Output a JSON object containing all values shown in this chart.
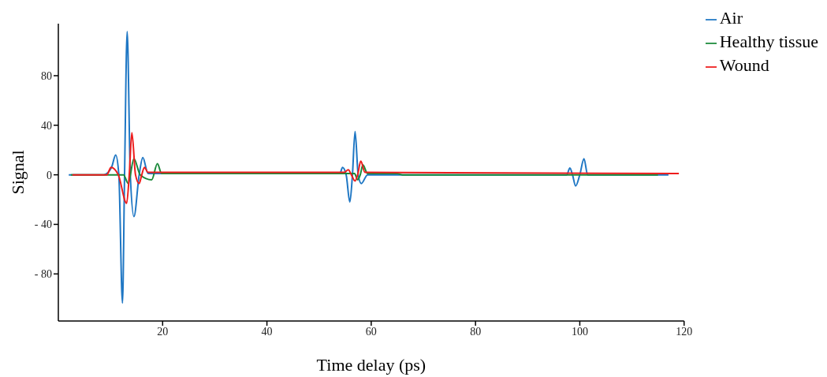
{
  "chart_data": {
    "type": "line",
    "xlabel": "Time delay (ps)",
    "ylabel": "Signal",
    "xlim": [
      0,
      120
    ],
    "ylim": [
      -118,
      122
    ],
    "xticks": [
      20,
      40,
      60,
      80,
      100,
      120
    ],
    "yticks": [
      {
        "value": -80,
        "label": "- 80"
      },
      {
        "value": -40,
        "label": "- 40"
      },
      0,
      40,
      80
    ],
    "grid": false,
    "legend": "top right",
    "marker": "none",
    "line_style": "solid",
    "series": [
      {
        "name": "Air",
        "color": "#1f77c4",
        "x": [
          2,
          8.7,
          10.2,
          11,
          11.6,
          12.3,
          12.7,
          13.2,
          13.8,
          14.5,
          15.5,
          16.2,
          17.2,
          20,
          54,
          54.5,
          55.2,
          55.9,
          56.4,
          56.9,
          57.5,
          58.1,
          59.3,
          97.5,
          98.1,
          98.6,
          99.2,
          100,
          100.8,
          101.5,
          117
        ],
        "values": [
          0,
          0,
          6,
          16,
          0,
          -103.5,
          0,
          115.6,
          0,
          -33.7,
          0,
          14,
          1,
          1,
          1,
          6,
          0,
          -22,
          0,
          35,
          0,
          -7,
          0,
          0,
          5.5,
          0,
          -9,
          0,
          13,
          0,
          0
        ]
      },
      {
        "name": "Healthy tissue",
        "color": "#1a8a3a",
        "x": [
          2.4,
          12.5,
          13.4,
          14.5,
          15.7,
          17.9,
          19,
          19.8,
          56.8,
          57.4,
          57.9,
          58.4,
          59.3,
          60.5,
          65,
          66,
          115
        ],
        "values": [
          0,
          0,
          -7,
          13,
          0,
          -4,
          9,
          1,
          1,
          -4,
          0,
          8,
          1,
          1,
          1,
          0,
          0
        ]
      },
      {
        "name": "Wound",
        "color": "#ee1c1c",
        "x": [
          2.7,
          9.3,
          10.1,
          11.5,
          13.1,
          13.6,
          14.1,
          14.8,
          15.5,
          16,
          16.5,
          17.2,
          54.8,
          55.6,
          56.2,
          56.9,
          57.4,
          58,
          58.8,
          119
        ],
        "values": [
          0,
          0,
          6,
          0,
          -23,
          0,
          34,
          0,
          -7,
          0,
          6,
          2,
          2,
          4,
          0,
          -5,
          0,
          11,
          2,
          1
        ]
      }
    ]
  }
}
